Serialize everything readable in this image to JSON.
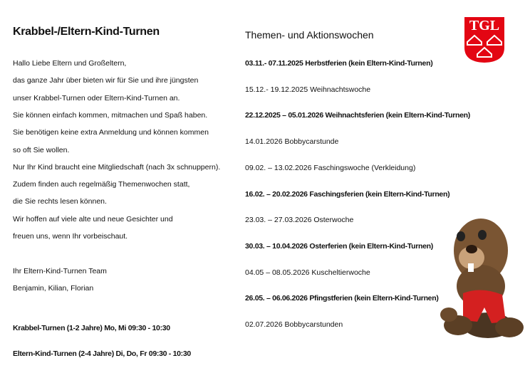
{
  "left": {
    "title": "Krabbel-/Eltern-Kind-Turnen",
    "intro": [
      "Hallo Liebe Eltern und Großeltern,",
      "das ganze Jahr über bieten wir für Sie und ihre jüngsten",
      "unser Krabbel-Turnen oder Eltern-Kind-Turnen an.",
      "Sie können einfach kommen, mitmachen und Spaß haben.",
      "Sie benötigen keine extra Anmeldung und können kommen",
      "so oft Sie wollen.",
      "Nur Ihr Kind braucht eine Mitgliedschaft (nach 3x schnuppern).",
      "Zudem finden auch regelmäßig Themenwochen statt,",
      "die Sie rechts lesen können.",
      "Wir hoffen auf viele alte und neue Gesichter und",
      "freuen uns, wenn Ihr vorbeischaut."
    ],
    "signoff": [
      "Ihr Eltern-Kind-Turnen Team",
      "Benjamin, Kilian, Florian"
    ],
    "schedule": [
      "Krabbel-Turnen (1-2 Jahre) Mo, Mi 09:30 - 10:30",
      "Eltern-Kind-Turnen (2-4 Jahre) Di, Do, Fr 09:30 - 10:30"
    ]
  },
  "right": {
    "title": "Themen- und Aktionswochen",
    "items": [
      {
        "text": "03.11.- 07.11.2025 Herbstferien (kein Eltern-Kind-Turnen)",
        "bold": true
      },
      {
        "text": "15.12.- 19.12.2025 Weihnachtswoche",
        "bold": false
      },
      {
        "text": "22.12.2025 – 05.01.2026 Weihnachtsferien (kein Eltern-Kind-Turnen)",
        "bold": true
      },
      {
        "text": "14.01.2026 Bobbycarstunde",
        "bold": false
      },
      {
        "text": "09.02. – 13.02.2026 Faschingswoche (Verkleidung)",
        "bold": false
      },
      {
        "text": "16.02. – 20.02.2026 Faschingsferien (kein Eltern-Kind-Turnen)",
        "bold": true
      },
      {
        "text": "23.03. – 27.03.2026 Osterwoche",
        "bold": false
      },
      {
        "text": "30.03. – 10.04.2026 Osterferien (kein Eltern-Kind-Turnen)",
        "bold": true
      },
      {
        "text": "04.05 – 08.05.2026 Kuscheltierwoche",
        "bold": false
      },
      {
        "text": "26.05. – 06.06.2026 Pfingstferien (kein Eltern-Kind-Turnen)",
        "bold": true
      },
      {
        "text": "02.07.2026 Bobbycarstunden",
        "bold": false
      }
    ]
  },
  "logo": {
    "text": "TGL",
    "color": "#e30613"
  }
}
